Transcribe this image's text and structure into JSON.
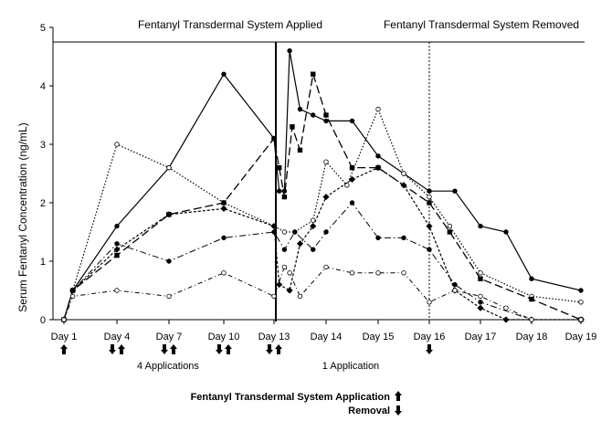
{
  "chart_data": {
    "type": "line",
    "title_applied": "Fentanyl Transdermal System Applied",
    "title_removed": "Fentanyl Transdermal System Removed",
    "ylabel": "Serum Fentanyl Concentration (ng/mL)",
    "xlabel": "",
    "ylim": [
      0,
      5
    ],
    "yticks": [
      "0",
      "1",
      "2",
      "3",
      "4",
      "5"
    ],
    "x_ticks": [
      {
        "label": "Day 1",
        "x": 1
      },
      {
        "label": "Day 4",
        "x": 4
      },
      {
        "label": "Day 7",
        "x": 7
      },
      {
        "label": "Day 10",
        "x": 10
      },
      {
        "label": "Day 13",
        "x": 13
      },
      {
        "label": "Day 14",
        "x": 14
      },
      {
        "label": "Day 15",
        "x": 15
      },
      {
        "label": "Day 16",
        "x": 16
      },
      {
        "label": "Day 17",
        "x": 17
      },
      {
        "label": "Day 18",
        "x": 18
      },
      {
        "label": "Day 19",
        "x": 19
      }
    ],
    "grid": false,
    "application_day": 13.1,
    "removal_day": 16.1,
    "series": [
      {
        "style": "solid-filled-circle",
        "points": [
          [
            1,
            0
          ],
          [
            1.5,
            0.5
          ],
          [
            4,
            1.6
          ],
          [
            7,
            2.6
          ],
          [
            10,
            4.2
          ],
          [
            13,
            3.1
          ],
          [
            13.1,
            2.2
          ],
          [
            13.2,
            2.2
          ],
          [
            13.3,
            4.6
          ],
          [
            13.5,
            3.6
          ],
          [
            13.75,
            3.5
          ],
          [
            14,
            3.4
          ],
          [
            14.5,
            3.4
          ],
          [
            15,
            2.8
          ],
          [
            15.5,
            2.5
          ],
          [
            16,
            2.2
          ],
          [
            16.5,
            2.2
          ],
          [
            17,
            1.6
          ],
          [
            17.5,
            1.5
          ],
          [
            18,
            0.7
          ],
          [
            19,
            0.5
          ]
        ]
      },
      {
        "style": "dotted-open-circle",
        "points": [
          [
            1,
            0
          ],
          [
            1.5,
            0.5
          ],
          [
            4,
            3.0
          ],
          [
            7,
            2.6
          ],
          [
            10,
            2.0
          ],
          [
            13,
            1.6
          ],
          [
            13.2,
            1.5
          ],
          [
            13.4,
            1.5
          ],
          [
            13.75,
            1.7
          ],
          [
            14,
            2.7
          ],
          [
            14.4,
            2.3
          ],
          [
            15,
            3.6
          ],
          [
            15.5,
            2.5
          ],
          [
            16,
            2.1
          ],
          [
            16.4,
            1.6
          ],
          [
            17,
            0.8
          ],
          [
            18,
            0.4
          ],
          [
            19,
            0.3
          ]
        ]
      },
      {
        "style": "long-dash-filled-square",
        "points": [
          [
            1,
            0
          ],
          [
            1.5,
            0.5
          ],
          [
            4,
            1.1
          ],
          [
            7,
            1.8
          ],
          [
            10,
            2.0
          ],
          [
            13,
            3.1
          ],
          [
            13.1,
            2.6
          ],
          [
            13.2,
            2.1
          ],
          [
            13.35,
            3.3
          ],
          [
            13.5,
            2.9
          ],
          [
            13.75,
            4.2
          ],
          [
            14,
            3.5
          ],
          [
            14.5,
            2.6
          ],
          [
            15,
            2.6
          ],
          [
            16,
            2.0
          ],
          [
            16.4,
            1.5
          ],
          [
            17,
            0.7
          ],
          [
            18,
            0.35
          ],
          [
            19,
            0
          ]
        ]
      },
      {
        "style": "dash-dot-filled-circle",
        "points": [
          [
            1,
            0
          ],
          [
            1.5,
            0.5
          ],
          [
            4,
            1.3
          ],
          [
            7,
            1.0
          ],
          [
            10,
            1.4
          ],
          [
            13,
            1.5
          ],
          [
            13.2,
            1.2
          ],
          [
            13.4,
            1.5
          ],
          [
            13.75,
            1.2
          ],
          [
            14,
            1.5
          ],
          [
            14.5,
            2.0
          ],
          [
            15,
            1.4
          ],
          [
            15.5,
            1.4
          ],
          [
            16,
            1.2
          ],
          [
            16.5,
            0.6
          ],
          [
            17,
            0.3
          ],
          [
            18,
            0
          ],
          [
            19,
            0
          ]
        ]
      },
      {
        "style": "dense-dot-filled-diamond",
        "points": [
          [
            1,
            0
          ],
          [
            1.5,
            0.5
          ],
          [
            4,
            1.2
          ],
          [
            7,
            1.8
          ],
          [
            10,
            1.9
          ],
          [
            13,
            1.6
          ],
          [
            13.1,
            0.6
          ],
          [
            13.3,
            0.5
          ],
          [
            13.5,
            1.3
          ],
          [
            13.75,
            1.6
          ],
          [
            14,
            2.1
          ],
          [
            14.5,
            2.4
          ],
          [
            15,
            2.6
          ],
          [
            15.5,
            2.3
          ],
          [
            16,
            1.6
          ],
          [
            16.5,
            0.5
          ],
          [
            17,
            0.2
          ],
          [
            17.5,
            0
          ],
          [
            18,
            0
          ],
          [
            19,
            0
          ]
        ]
      },
      {
        "style": "dash-dot-open-circle",
        "points": [
          [
            1,
            0
          ],
          [
            1.5,
            0.4
          ],
          [
            4,
            0.5
          ],
          [
            7,
            0.4
          ],
          [
            10,
            0.8
          ],
          [
            13,
            0.4
          ],
          [
            13.2,
            0.9
          ],
          [
            13.3,
            0.8
          ],
          [
            13.5,
            0.4
          ],
          [
            14,
            0.9
          ],
          [
            14.5,
            0.8
          ],
          [
            15,
            0.8
          ],
          [
            15.5,
            0.8
          ],
          [
            16,
            0.3
          ],
          [
            16.5,
            0.5
          ],
          [
            17,
            0.4
          ],
          [
            17.5,
            0.2
          ],
          [
            18,
            0
          ],
          [
            19,
            0
          ]
        ]
      }
    ],
    "markers": [
      {
        "day": 1,
        "arrows": [
          "up"
        ]
      },
      {
        "day": 4,
        "arrows": [
          "down",
          "up"
        ]
      },
      {
        "day": 7,
        "arrows": [
          "down",
          "up"
        ]
      },
      {
        "day": 10,
        "arrows": [
          "down",
          "up"
        ]
      },
      {
        "day": 13,
        "arrows": [
          "down",
          "up"
        ]
      },
      {
        "day": 16,
        "arrows": [
          "down"
        ]
      }
    ]
  },
  "annotations": {
    "four_applications": "4 Applications",
    "one_application": "1 Application",
    "legend_application": "Fentanyl Transdermal System Application",
    "legend_removal": "Removal"
  }
}
